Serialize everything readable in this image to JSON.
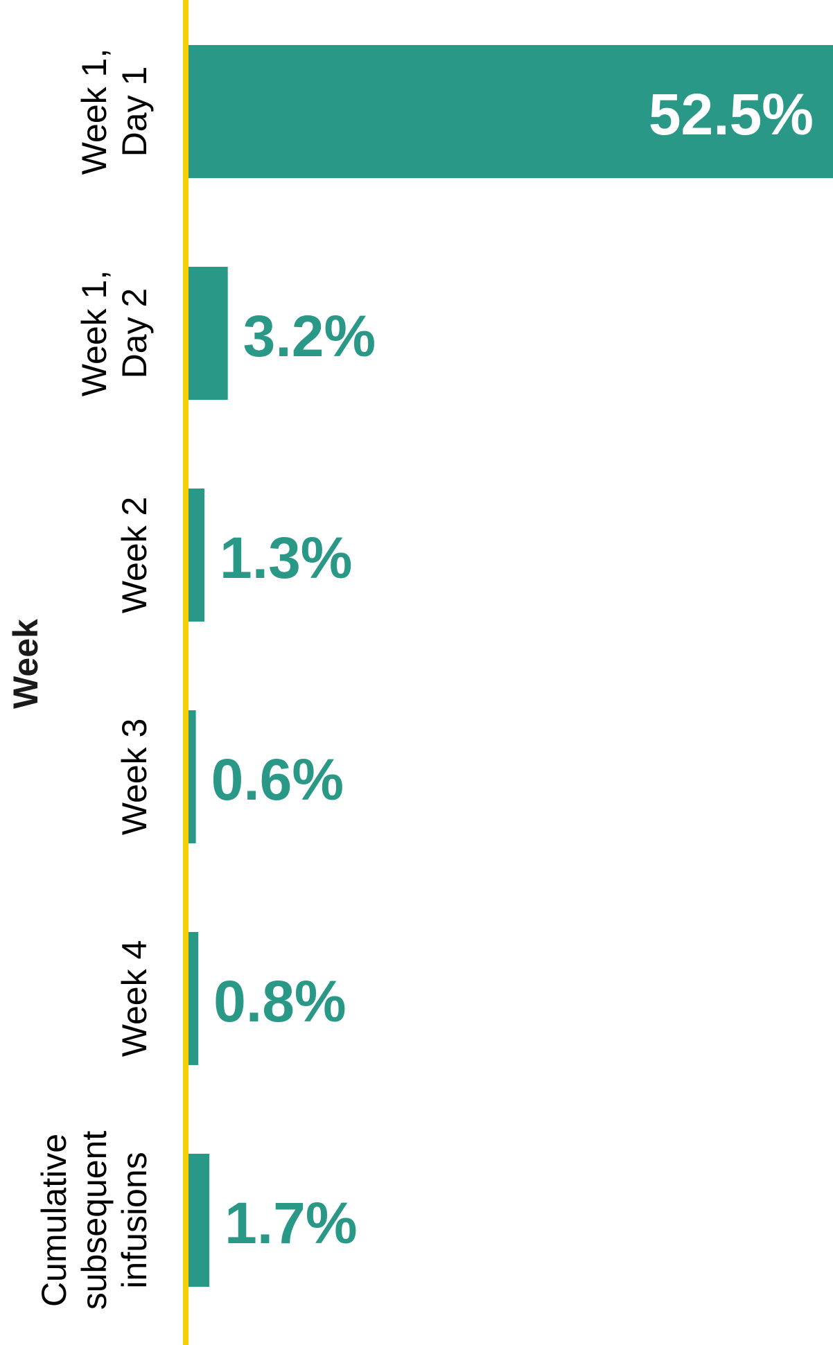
{
  "chart_data": {
    "type": "bar",
    "orientation": "horizontal",
    "ylabel": "Week",
    "categories": [
      [
        "Week 1,",
        "Day 1"
      ],
      [
        "Week 1,",
        "Day 2"
      ],
      [
        "Week 2"
      ],
      [
        "Week 3"
      ],
      [
        "Week 4"
      ],
      [
        "Cumulative",
        "subsequent",
        "infusions"
      ]
    ],
    "values": [
      52.5,
      3.2,
      1.3,
      0.6,
      0.8,
      1.7
    ],
    "value_labels": [
      "52.5%",
      "3.2%",
      "1.3%",
      "0.6%",
      "0.8%",
      "1.7%"
    ],
    "xlim": [
      0,
      52.5
    ],
    "grid": false,
    "legend": "none",
    "colors": {
      "bar": "#2a9887",
      "axis": "#f5cf00",
      "label_inside": "#ffffff",
      "label_outside": "#2a9887"
    }
  }
}
